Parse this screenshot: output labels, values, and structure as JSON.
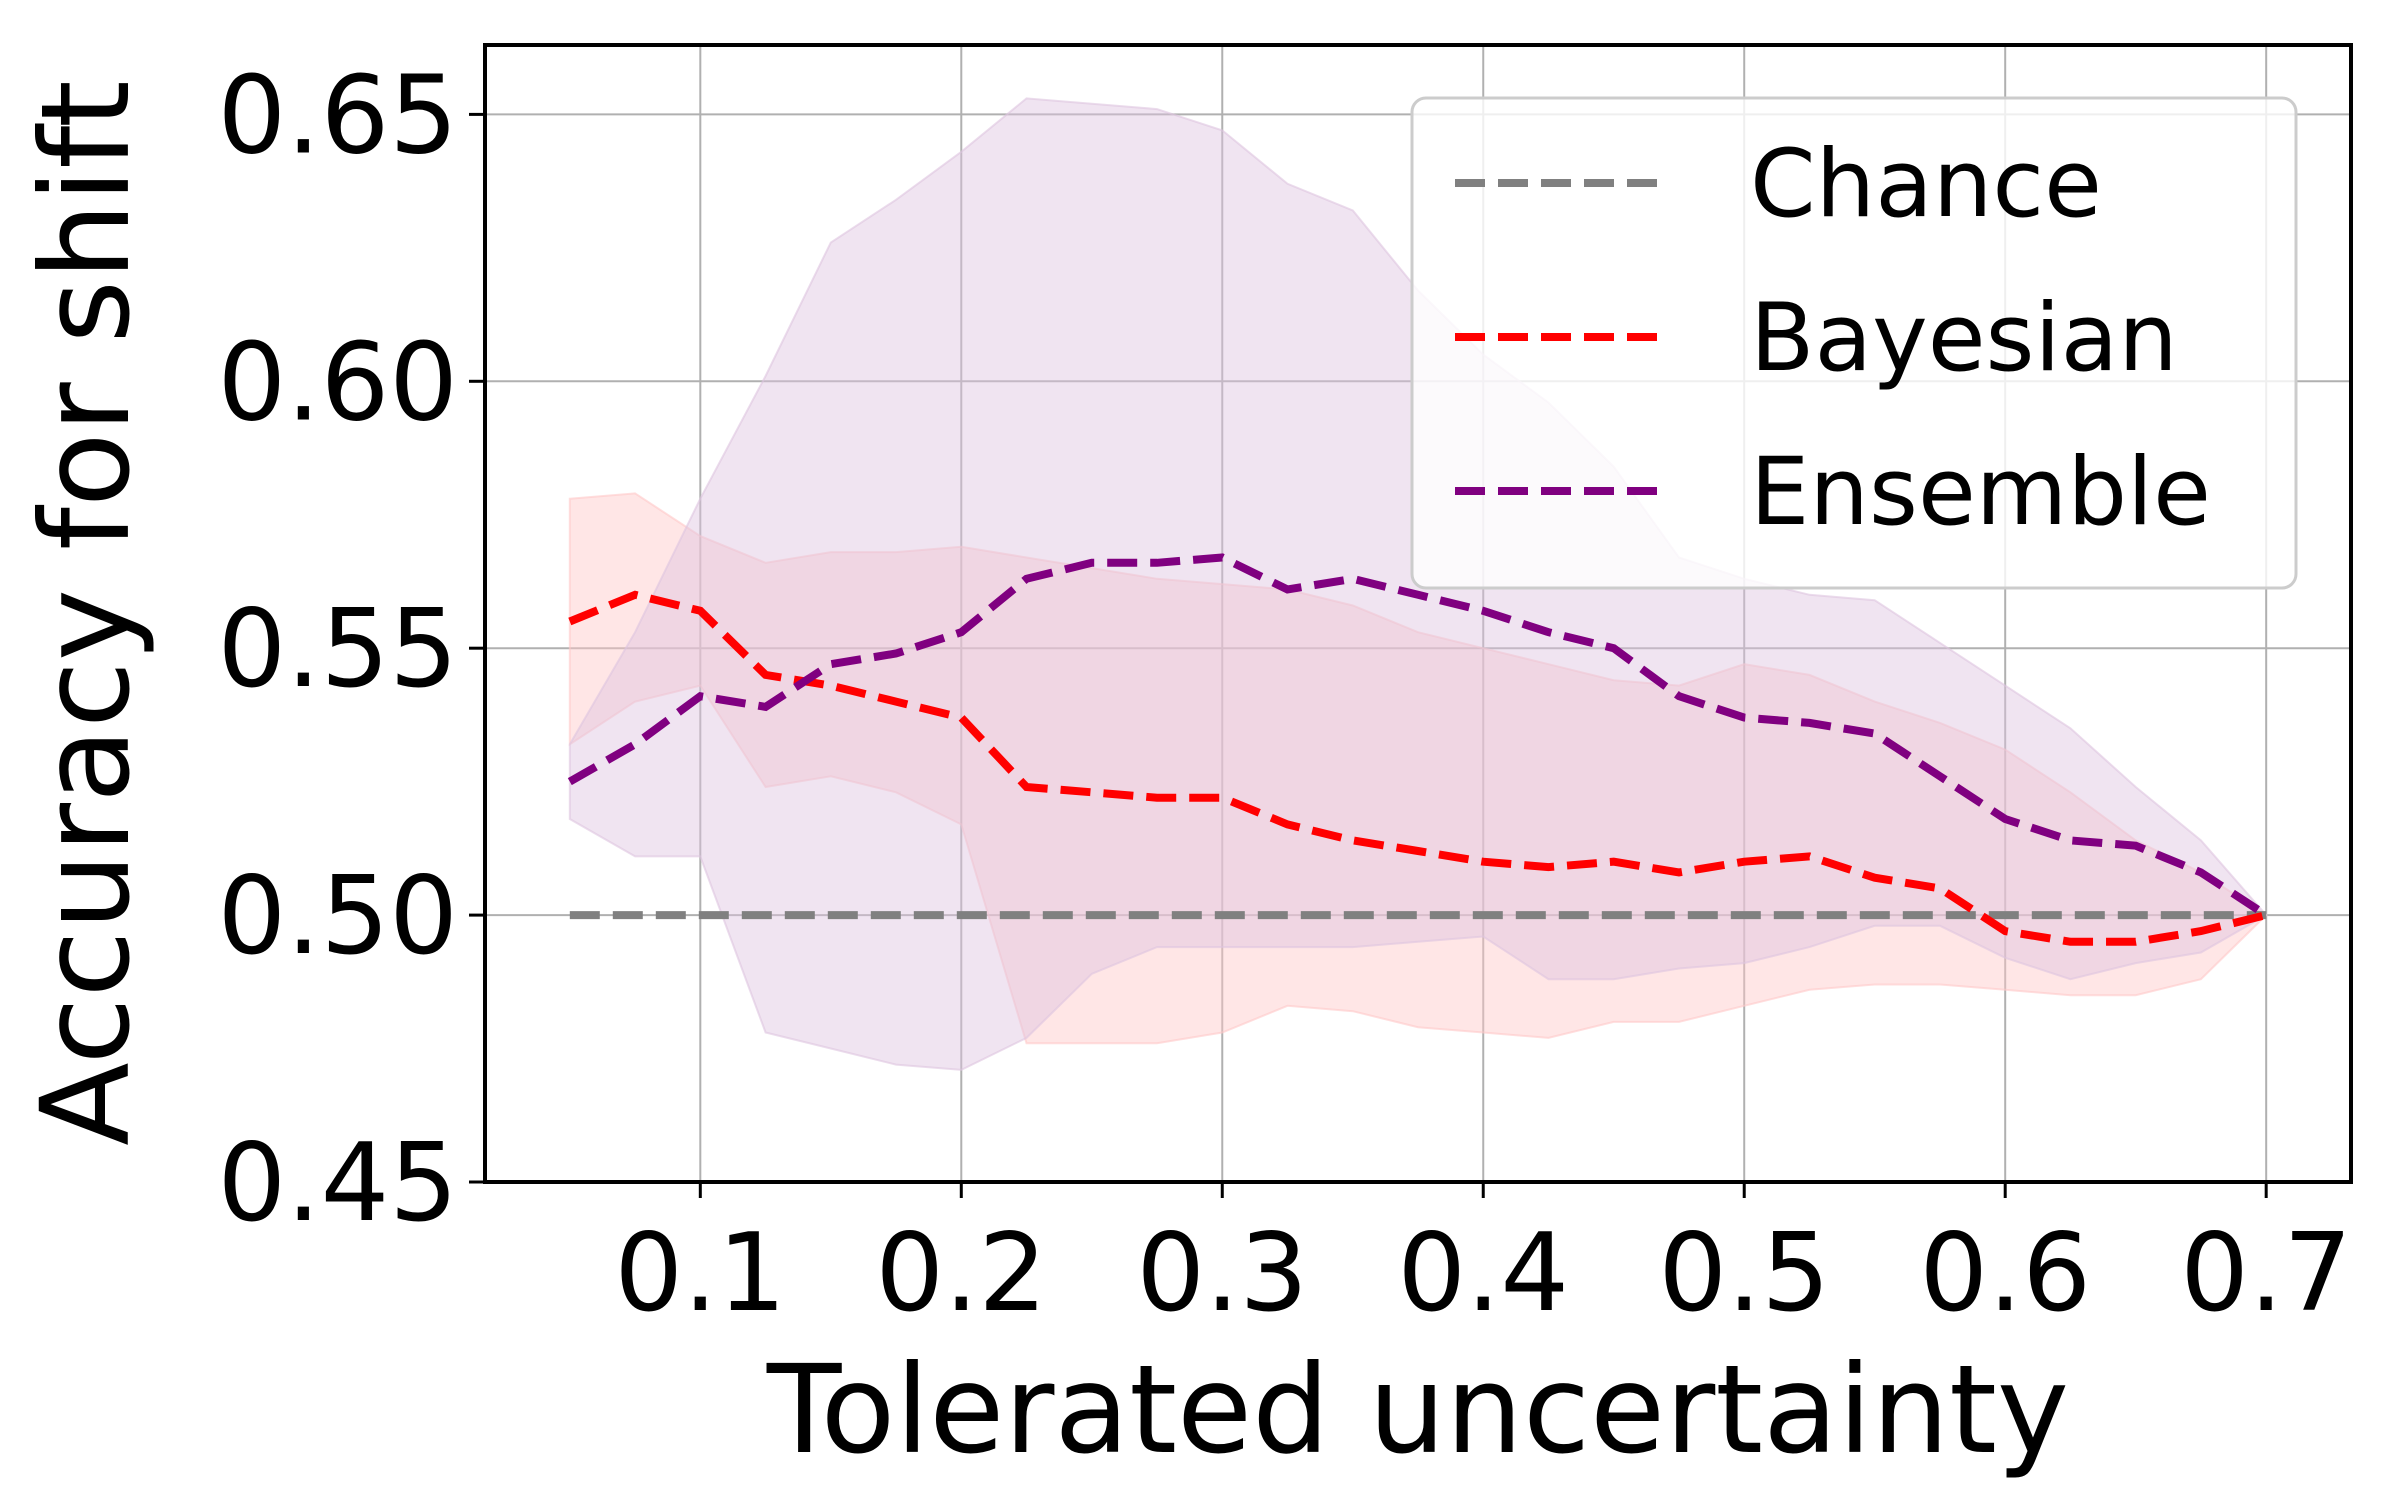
{
  "chart_data": {
    "type": "line",
    "title": "",
    "xlabel": "Tolerated uncertainty",
    "ylabel": "Accuracy for shift",
    "xlim": [
      0.0175,
      0.7325
    ],
    "ylim": [
      0.45,
      0.663
    ],
    "xticks": [
      0.1,
      0.2,
      0.3,
      0.4,
      0.5,
      0.6,
      0.7
    ],
    "xtick_labels": [
      "0.1",
      "0.2",
      "0.3",
      "0.4",
      "0.5",
      "0.6",
      "0.7"
    ],
    "yticks": [
      0.45,
      0.5,
      0.55,
      0.6,
      0.65
    ],
    "ytick_labels": [
      "0.45",
      "0.50",
      "0.55",
      "0.60",
      "0.65"
    ],
    "grid": true,
    "legend_position": "top-right",
    "x": [
      0.05,
      0.075,
      0.1,
      0.125,
      0.15,
      0.175,
      0.2,
      0.225,
      0.25,
      0.275,
      0.3,
      0.325,
      0.35,
      0.375,
      0.4,
      0.425,
      0.45,
      0.475,
      0.5,
      0.525,
      0.55,
      0.575,
      0.6,
      0.625,
      0.65,
      0.675,
      0.7
    ],
    "series": [
      {
        "name": "Chance",
        "color": "#808080",
        "style": "dashed",
        "values": [
          0.5,
          0.5,
          0.5,
          0.5,
          0.5,
          0.5,
          0.5,
          0.5,
          0.5,
          0.5,
          0.5,
          0.5,
          0.5,
          0.5,
          0.5,
          0.5,
          0.5,
          0.5,
          0.5,
          0.5,
          0.5,
          0.5,
          0.5,
          0.5,
          0.5,
          0.5,
          0.5
        ]
      },
      {
        "name": "Bayesian",
        "color": "#ff0000",
        "style": "dashed",
        "values": [
          0.555,
          0.56,
          0.557,
          0.545,
          0.543,
          0.54,
          0.537,
          0.524,
          0.523,
          0.522,
          0.522,
          0.517,
          0.514,
          0.512,
          0.51,
          0.509,
          0.51,
          0.508,
          0.51,
          0.511,
          0.507,
          0.505,
          0.497,
          0.495,
          0.495,
          0.497,
          0.5
        ],
        "upper": [
          0.578,
          0.579,
          0.571,
          0.566,
          0.568,
          0.568,
          0.569,
          0.567,
          0.565,
          0.563,
          0.562,
          0.561,
          0.558,
          0.553,
          0.55,
          0.547,
          0.544,
          0.543,
          0.547,
          0.545,
          0.54,
          0.536,
          0.531,
          0.523,
          0.514,
          0.508,
          0.5
        ],
        "lower": [
          0.532,
          0.54,
          0.543,
          0.524,
          0.526,
          0.523,
          0.517,
          0.476,
          0.476,
          0.476,
          0.478,
          0.483,
          0.482,
          0.479,
          0.478,
          0.477,
          0.48,
          0.48,
          0.483,
          0.486,
          0.487,
          0.487,
          0.486,
          0.485,
          0.485,
          0.488,
          0.5
        ]
      },
      {
        "name": "Ensemble",
        "color": "#800080",
        "style": "dashed",
        "values": [
          0.525,
          0.532,
          0.541,
          0.539,
          0.547,
          0.549,
          0.553,
          0.563,
          0.566,
          0.566,
          0.567,
          0.561,
          0.563,
          0.56,
          0.557,
          0.553,
          0.55,
          0.541,
          0.537,
          0.536,
          0.534,
          0.526,
          0.518,
          0.514,
          0.513,
          0.508,
          0.5
        ],
        "upper": [
          0.532,
          0.553,
          0.578,
          0.601,
          0.626,
          0.634,
          0.643,
          0.653,
          0.652,
          0.651,
          0.647,
          0.637,
          0.632,
          0.617,
          0.605,
          0.596,
          0.584,
          0.567,
          0.563,
          0.56,
          0.559,
          0.551,
          0.543,
          0.535,
          0.524,
          0.514,
          0.5
        ],
        "lower": [
          0.518,
          0.511,
          0.511,
          0.478,
          0.475,
          0.472,
          0.471,
          0.477,
          0.489,
          0.494,
          0.494,
          0.494,
          0.494,
          0.495,
          0.496,
          0.488,
          0.488,
          0.49,
          0.491,
          0.494,
          0.498,
          0.498,
          0.492,
          0.488,
          0.491,
          0.493,
          0.5
        ]
      }
    ],
    "band_colors": {
      "Bayesian": "#ffc8c8",
      "Ensemble": "#ddc4e0"
    }
  }
}
